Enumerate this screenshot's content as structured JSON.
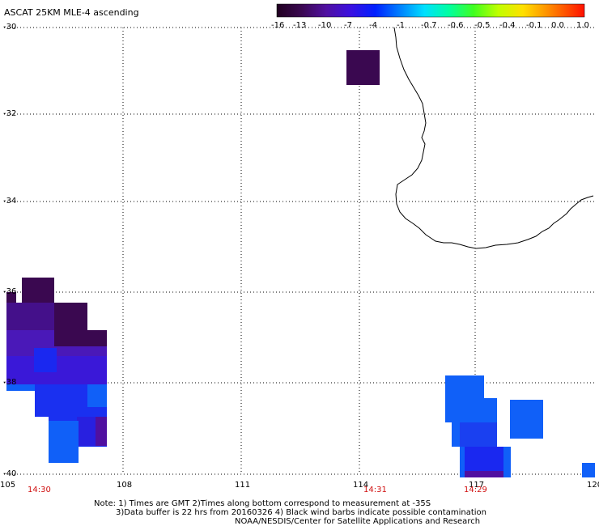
{
  "title": "ASCAT 25KM MLE-4 ascending",
  "colorbar": {
    "labels": [
      "-16",
      "-13",
      "-10",
      "-7",
      "-4",
      "-1",
      "-0.7",
      "-0.6",
      "-0.5",
      "-0.4",
      "-0.1",
      "0.0",
      "1.0"
    ]
  },
  "lat_labels": [
    "-30",
    "-32",
    "-34",
    "-36",
    "-38",
    "-40"
  ],
  "lon_labels": [
    "105",
    "108",
    "111",
    "114",
    "117",
    "120"
  ],
  "time_labels": [
    "14:30",
    "14:31",
    "14:29"
  ],
  "footnote": {
    "line1": "Note: 1) Times are GMT 2)Times along bottom correspond to measurement at -35S",
    "line2": "3)Data buffer is 22 hrs from 20160326 4) Black wind barbs indicate possible contamination",
    "line3": "NOAA/NESDIS/Center for Satellite Applications and Research"
  },
  "colors": {
    "dark_purple": "#3a0850",
    "purple": "#5010a0",
    "violet": "#4a18c8",
    "blue": "#1a28f0",
    "azure": "#1060f8"
  }
}
